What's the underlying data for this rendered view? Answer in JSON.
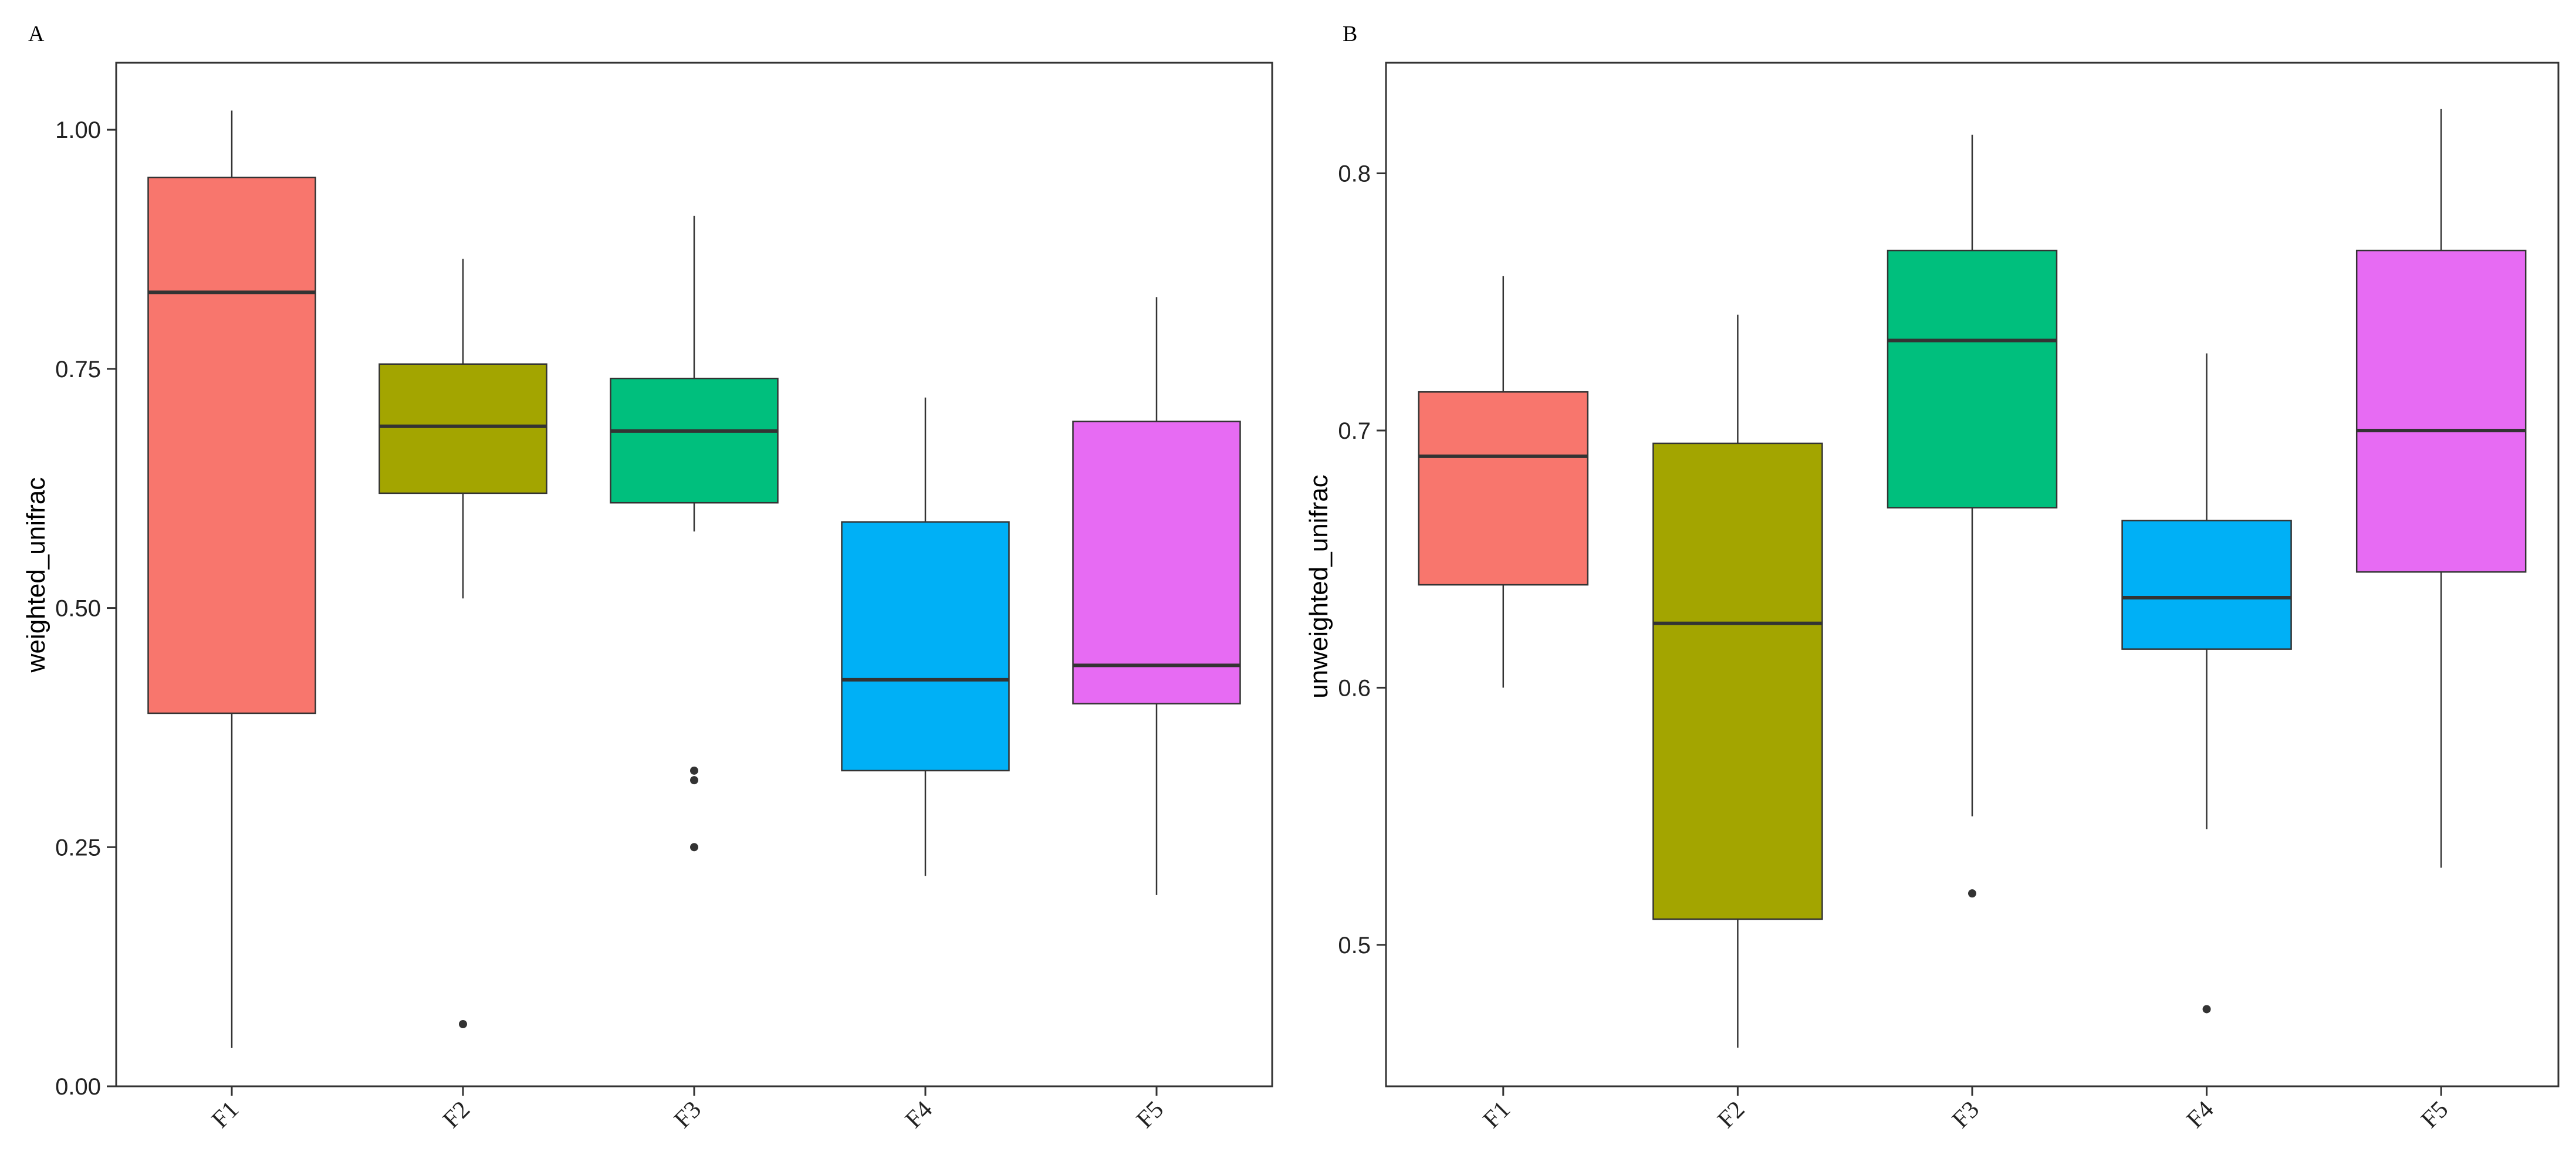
{
  "chart_data": [
    {
      "panel": "A",
      "type": "boxplot",
      "ylabel": "weighted_unifrac",
      "xlabel": "",
      "ylim": [
        0.0,
        1.07
      ],
      "yticks": [
        "0.00",
        "0.25",
        "0.50",
        "0.75",
        "1.00"
      ],
      "ytick_values": [
        0.0,
        0.25,
        0.5,
        0.75,
        1.0
      ],
      "grid": false,
      "categories": [
        "F1",
        "F2",
        "F3",
        "F4",
        "F5"
      ],
      "colors": [
        "#F8766D",
        "#A3A500",
        "#00BF7D",
        "#00B0F6",
        "#E76BF3"
      ],
      "boxes": [
        {
          "min": 0.04,
          "q1": 0.39,
          "median": 0.83,
          "q3": 0.95,
          "max": 1.02,
          "outliers": []
        },
        {
          "min": 0.51,
          "q1": 0.62,
          "median": 0.69,
          "q3": 0.755,
          "max": 0.865,
          "outliers": [
            0.065
          ]
        },
        {
          "min": 0.58,
          "q1": 0.61,
          "median": 0.685,
          "q3": 0.74,
          "max": 0.91,
          "outliers": [
            0.33,
            0.32,
            0.25
          ]
        },
        {
          "min": 0.22,
          "q1": 0.33,
          "median": 0.425,
          "q3": 0.59,
          "max": 0.72,
          "outliers": []
        },
        {
          "min": 0.2,
          "q1": 0.4,
          "median": 0.44,
          "q3": 0.695,
          "max": 0.825,
          "outliers": []
        }
      ]
    },
    {
      "panel": "B",
      "type": "boxplot",
      "ylabel": "unweighted_unifrac",
      "xlabel": "",
      "ylim": [
        0.445,
        0.843
      ],
      "yticks": [
        "0.5",
        "0.6",
        "0.7",
        "0.8"
      ],
      "ytick_values": [
        0.5,
        0.6,
        0.7,
        0.8
      ],
      "grid": false,
      "categories": [
        "F1",
        "F2",
        "F3",
        "F4",
        "F5"
      ],
      "colors": [
        "#F8766D",
        "#A3A500",
        "#00BF7D",
        "#00B0F6",
        "#E76BF3"
      ],
      "boxes": [
        {
          "min": 0.6,
          "q1": 0.64,
          "median": 0.69,
          "q3": 0.715,
          "max": 0.76,
          "outliers": []
        },
        {
          "min": 0.46,
          "q1": 0.51,
          "median": 0.625,
          "q3": 0.695,
          "max": 0.745,
          "outliers": []
        },
        {
          "min": 0.55,
          "q1": 0.67,
          "median": 0.735,
          "q3": 0.77,
          "max": 0.815,
          "outliers": [
            0.52
          ]
        },
        {
          "min": 0.545,
          "q1": 0.615,
          "median": 0.635,
          "q3": 0.665,
          "max": 0.73,
          "outliers": [
            0.475
          ]
        },
        {
          "min": 0.53,
          "q1": 0.645,
          "median": 0.7,
          "q3": 0.77,
          "max": 0.825,
          "outliers": []
        }
      ]
    }
  ]
}
